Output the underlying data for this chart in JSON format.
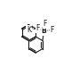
{
  "bg_color": "#ffffff",
  "line_color": "#1a1a1a",
  "text_color": "#1a1a1a",
  "lw": 0.8,
  "font_size": 5.5,
  "B_label": "B",
  "K_label": "K",
  "F_label": "F",
  "plus_label": "+"
}
